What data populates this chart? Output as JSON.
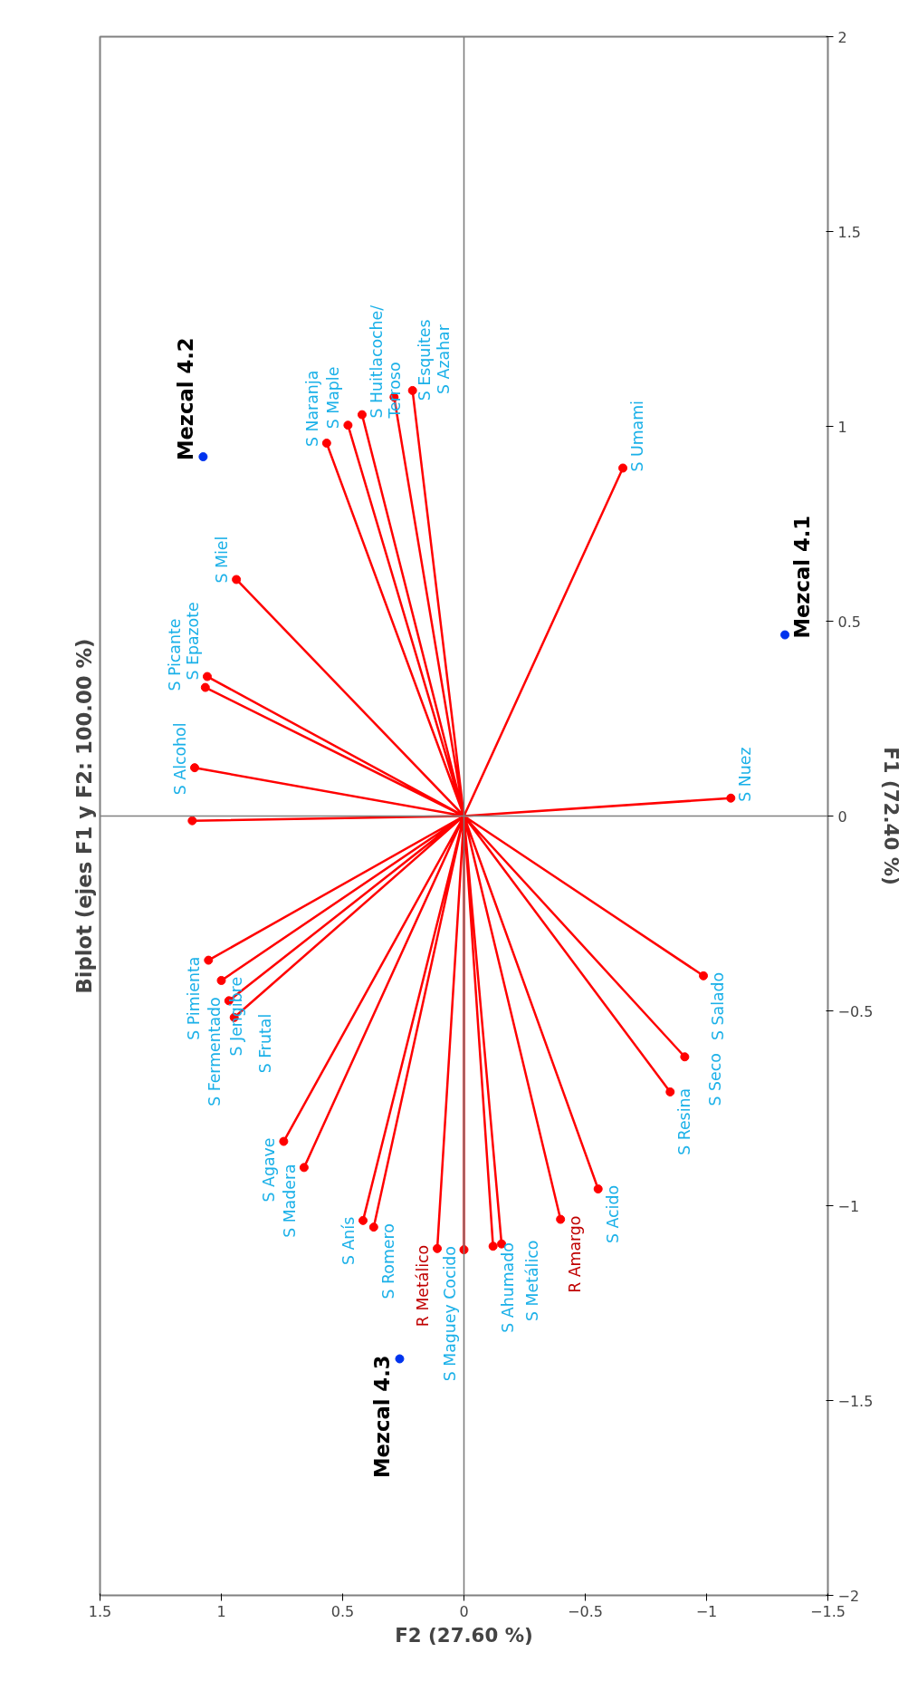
{
  "chart_data": {
    "type": "scatter",
    "title": "Biplot (ejes F1 y F2: 100.00 %)",
    "xlabel": "F2 (27.60 %)",
    "ylabel": "F1 (72.40 %)",
    "xlim": [
      1.5,
      -1.5
    ],
    "ylim": [
      -2,
      2
    ],
    "xticks": [
      1.5,
      1,
      0.5,
      0,
      -0.5,
      -1,
      -1.5
    ],
    "yticks": [
      -2,
      -1.5,
      -1,
      -0.5,
      0,
      0.5,
      1,
      1.5,
      2
    ],
    "grid": false,
    "marker": "circle",
    "ref_lines": [
      {
        "axis": "x",
        "value": 0,
        "color": "#7a7a7a"
      },
      {
        "axis": "y",
        "value": 0,
        "color": "#808080"
      }
    ],
    "series": [
      {
        "type": "line",
        "color": "#ff0000",
        "marker": "none",
        "x": [
          0,
          -0.655,
          0,
          -1.1,
          0,
          0.566,
          0,
          0.478,
          0,
          0.42,
          0,
          0.288,
          0,
          0.212,
          0,
          0.938,
          0,
          1.058,
          0,
          1.066,
          0,
          1.11,
          0,
          1.12,
          0,
          1.053,
          0,
          1.0,
          0,
          0.969,
          0,
          0.947,
          0,
          0.743,
          0,
          0.659,
          0,
          0.416,
          0,
          0.372,
          0,
          0.0,
          0,
          -0.12,
          0,
          -0.155,
          0,
          -0.553,
          0,
          -0.85,
          0,
          -0.91,
          0,
          -0.987,
          0,
          0.11,
          0,
          -0.398
        ],
        "values": [
          0,
          0.893,
          0,
          0.046,
          0,
          0.957,
          0,
          1.003,
          0,
          1.03,
          0,
          1.075,
          0,
          1.092,
          0,
          0.607,
          0,
          0.358,
          0,
          0.33,
          0,
          0.124,
          0,
          -0.012,
          0,
          -0.37,
          0,
          -0.422,
          0,
          -0.474,
          0,
          -0.517,
          0,
          -0.835,
          0,
          -0.902,
          0,
          -1.038,
          0,
          -1.055,
          0,
          -1.113,
          0,
          -1.104,
          0,
          -1.098,
          0,
          -0.957,
          0,
          -0.708,
          0,
          -0.618,
          0,
          -0.41,
          0,
          -1.11,
          0,
          -1.035
        ]
      },
      {
        "color": "#ff0000",
        "x": [
          -0.655,
          -1.1,
          0.566,
          0.478,
          0.42,
          0.288,
          0.212,
          0.938,
          1.058,
          1.066,
          1.11,
          1.12,
          1.053,
          1.0,
          0.969,
          0.947,
          0.743,
          0.659,
          0.416,
          0.372,
          0.0,
          -0.12,
          -0.155,
          -0.553,
          -0.85,
          -0.91,
          -0.987
        ],
        "values": [
          0.893,
          0.046,
          0.957,
          1.003,
          1.03,
          1.075,
          1.092,
          0.607,
          0.358,
          0.33,
          0.124,
          -0.012,
          -0.37,
          -0.422,
          -0.474,
          -0.517,
          -0.835,
          -0.902,
          -1.038,
          -1.055,
          -1.113,
          -1.104,
          -1.098,
          -0.957,
          -0.708,
          -0.618,
          -0.41
        ],
        "value_labels": [
          "S Umami",
          "S Nuez",
          "S Naranja",
          "S Maple",
          "S Huitlacoche/\nTerroso",
          "S Esquites",
          "S Azahar",
          "S Miel",
          "S Epazote",
          "S Picante",
          "S Alcohol",
          null,
          "S Pimienta",
          "S Jengibre",
          "S Fermentado",
          "S Frutal",
          "S Agave",
          "S Madera",
          "S Anís",
          "S Romero",
          "S Maguey Cocido",
          "S Ahumado",
          "S Metálico",
          "S Acido",
          "S Resina",
          "S Seco",
          "S Salado"
        ]
      },
      {
        "color": "#ff0000",
        "x": [
          0.11,
          -0.398
        ],
        "values": [
          -1.11,
          -1.035
        ],
        "value_labels": [
          "R Metálico",
          "R Amargo"
        ]
      },
      {
        "color": "#0033ee",
        "x": [
          1.075,
          -1.323,
          0.265
        ],
        "values": [
          0.922,
          0.465,
          -1.393
        ],
        "value_labels": [
          "Mezcal 4.2",
          "Mezcal 4.1",
          "Mezcal 4.3"
        ]
      }
    ]
  }
}
